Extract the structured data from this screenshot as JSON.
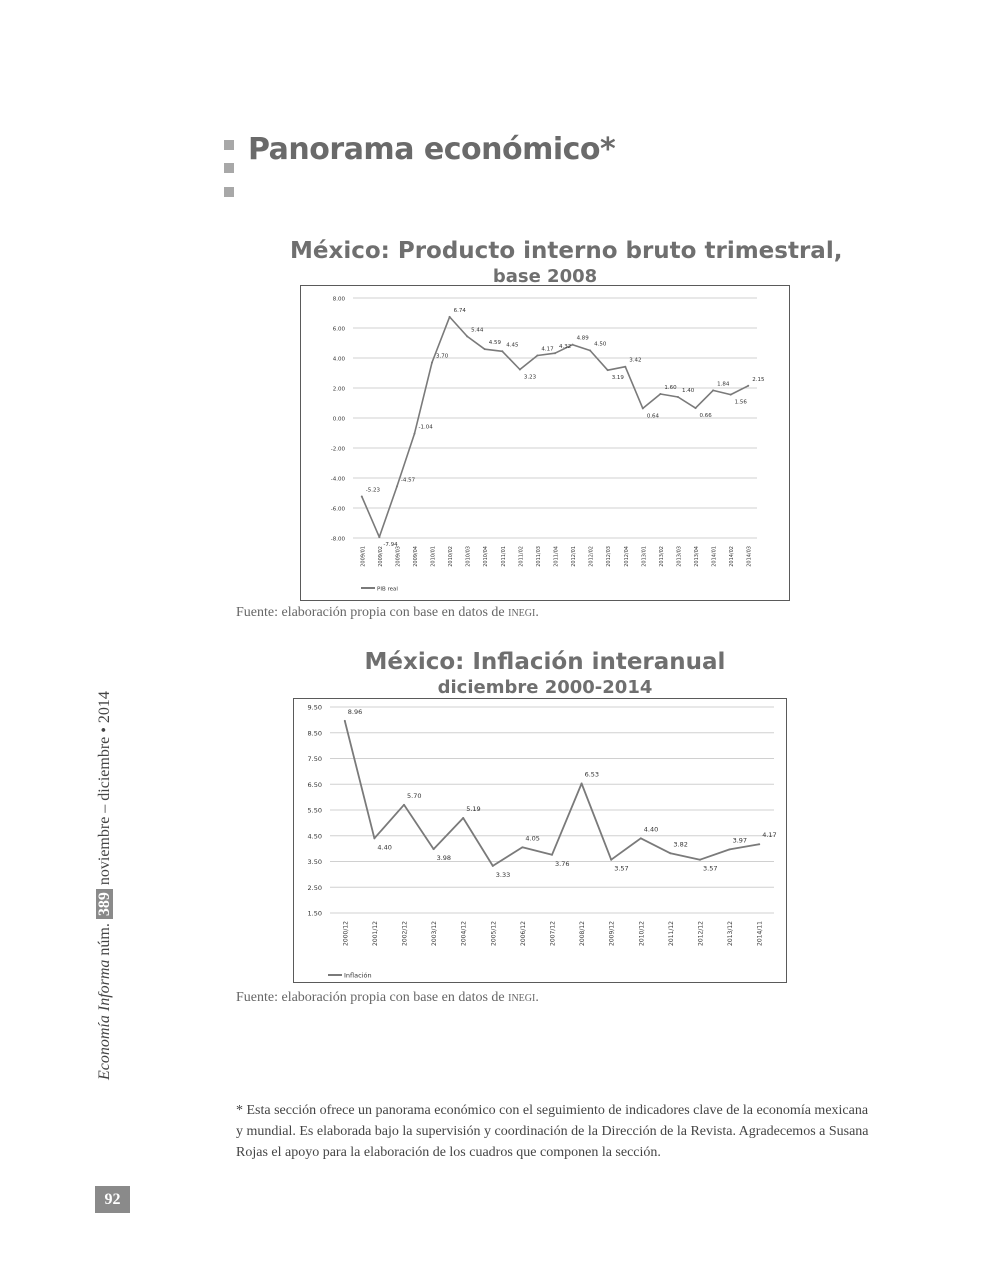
{
  "section": {
    "title": "Panorama económico*"
  },
  "sidebar": {
    "journal_title": "Economía Informa",
    "issue_prefix": "núm.",
    "issue_number": "389",
    "period": "noviembre – diciembre • 2014"
  },
  "page_number": "92",
  "footnote": "* Esta sección ofrece un panorama económico con el seguimiento de indicadores clave de la economía mexicana y mundial. Es elaborada bajo la supervisión y coordinación de la Dirección de la Revista. Agradecemos a Susana Rojas el apoyo para la elaboración de los cuadros que componen la sección.",
  "colors": {
    "line": "#7a7a7a",
    "grid": "#d0d0d0",
    "accent_gray": "#8a8a8a"
  },
  "chart_data": [
    {
      "type": "line",
      "title": "México: Producto interno bruto trimestral,",
      "subtitle": "base 2008",
      "source_prefix": "Fuente: elaboración propia con base en datos de ",
      "source_org": "inegi",
      "source_suffix": ".",
      "legend_position": "bottom-left",
      "grid": true,
      "ylim": [
        -8,
        8
      ],
      "y_ticks": [
        "8.00",
        "6.00",
        "4.00",
        "2.00",
        "0.00",
        "-2.00",
        "-4.00",
        "-6.00",
        "-8.00"
      ],
      "categories": [
        "2009/01",
        "2009/02",
        "2009/03",
        "2009/04",
        "2010/01",
        "2010/02",
        "2010/03",
        "2010/04",
        "2011/01",
        "2011/02",
        "2011/03",
        "2011/04",
        "2012/01",
        "2012/02",
        "2012/03",
        "2012/04",
        "2013/01",
        "2013/02",
        "2013/03",
        "2013/04",
        "2014/01",
        "2014/02",
        "2014/03"
      ],
      "series": [
        {
          "name": "PIB real",
          "values": [
            -5.23,
            -7.94,
            -4.57,
            -1.04,
            3.7,
            6.74,
            5.44,
            4.59,
            4.45,
            3.23,
            4.17,
            4.32,
            4.89,
            4.5,
            3.19,
            3.42,
            0.64,
            1.6,
            1.4,
            0.66,
            1.84,
            1.56,
            2.15
          ],
          "labels": [
            "-5.23",
            "-7.94",
            "-4.57",
            "-1.04",
            "3.70",
            "6.74",
            "5.44",
            "4.59",
            "4.45",
            "3.23",
            "4.17",
            "4.32",
            "4.89",
            "4.50",
            "3.19",
            "3.42",
            "0.64",
            "1.60",
            "1.40",
            "0.66",
            "1.84",
            "1.56",
            "2.15"
          ]
        }
      ]
    },
    {
      "type": "line",
      "title": "México: Inflación interanual",
      "subtitle": "diciembre 2000-2014",
      "source_prefix": "Fuente: elaboración propia con base en datos de ",
      "source_org": "inegi",
      "source_suffix": ".",
      "legend_position": "bottom-left",
      "grid": true,
      "ylim": [
        1.5,
        9.5
      ],
      "y_ticks": [
        "9.50",
        "8.50",
        "7.50",
        "6.50",
        "5.50",
        "4.50",
        "3.50",
        "2.50",
        "1.50"
      ],
      "categories": [
        "2000/12",
        "2001/12",
        "2002/12",
        "2003/12",
        "2004/12",
        "2005/12",
        "2006/12",
        "2007/12",
        "2008/12",
        "2009/12",
        "2010/12",
        "2011/12",
        "2012/12",
        "2013/12",
        "2014/11"
      ],
      "series": [
        {
          "name": "Inflación",
          "values": [
            8.96,
            4.4,
            5.7,
            3.98,
            5.19,
            3.33,
            4.05,
            3.76,
            6.53,
            3.57,
            4.4,
            3.82,
            3.57,
            3.97,
            4.17
          ],
          "labels": [
            "8.96",
            "4.40",
            "5.70",
            "3.98",
            "5.19",
            "3.33",
            "4.05",
            "3.76",
            "6.53",
            "3.57",
            "4.40",
            "3.82",
            "3.57",
            "3.97",
            "4.17"
          ]
        }
      ]
    }
  ]
}
